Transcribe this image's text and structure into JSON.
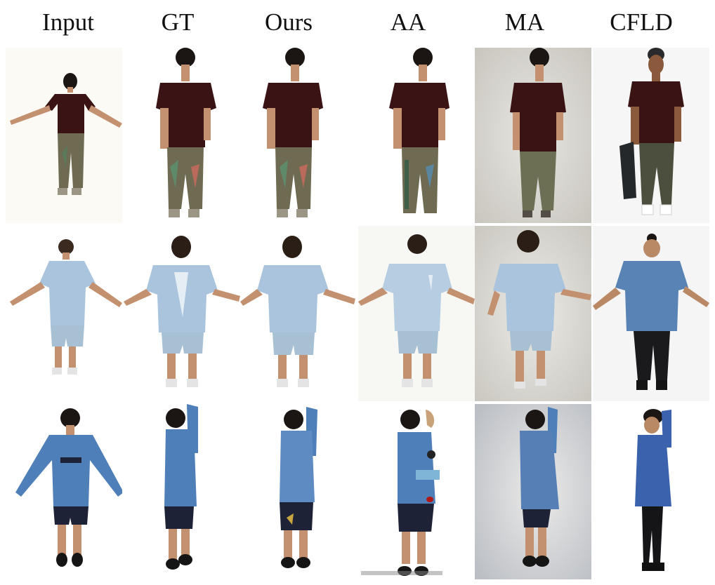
{
  "columns": [
    "Input",
    "GT",
    "Ours",
    "AA",
    "MA",
    "CFLD"
  ],
  "rows": [
    {
      "description": "person in dark maroon t-shirt and patterned khaki pants",
      "cells": [
        "input",
        "gt",
        "ours",
        "aa",
        "ma",
        "cfld"
      ]
    },
    {
      "description": "person in light blue t-shirt and light blue shorts",
      "cells": [
        "input",
        "gt",
        "ours",
        "aa",
        "ma",
        "cfld"
      ]
    },
    {
      "description": "person in blue long-sleeve shirt and navy shorts",
      "cells": [
        "input",
        "gt",
        "ours",
        "aa",
        "ma",
        "cfld"
      ]
    }
  ],
  "colors": {
    "shirt_row1": "#3a1415",
    "pants_row1": "#6f6a52",
    "shirt_row2": "#a9c4dc",
    "shorts_row2": "#a7c0d4",
    "shirt_row3": "#4f7fb8",
    "shorts_row3": "#1d2236",
    "skin": "#c49170",
    "hair": "#1b1613"
  }
}
